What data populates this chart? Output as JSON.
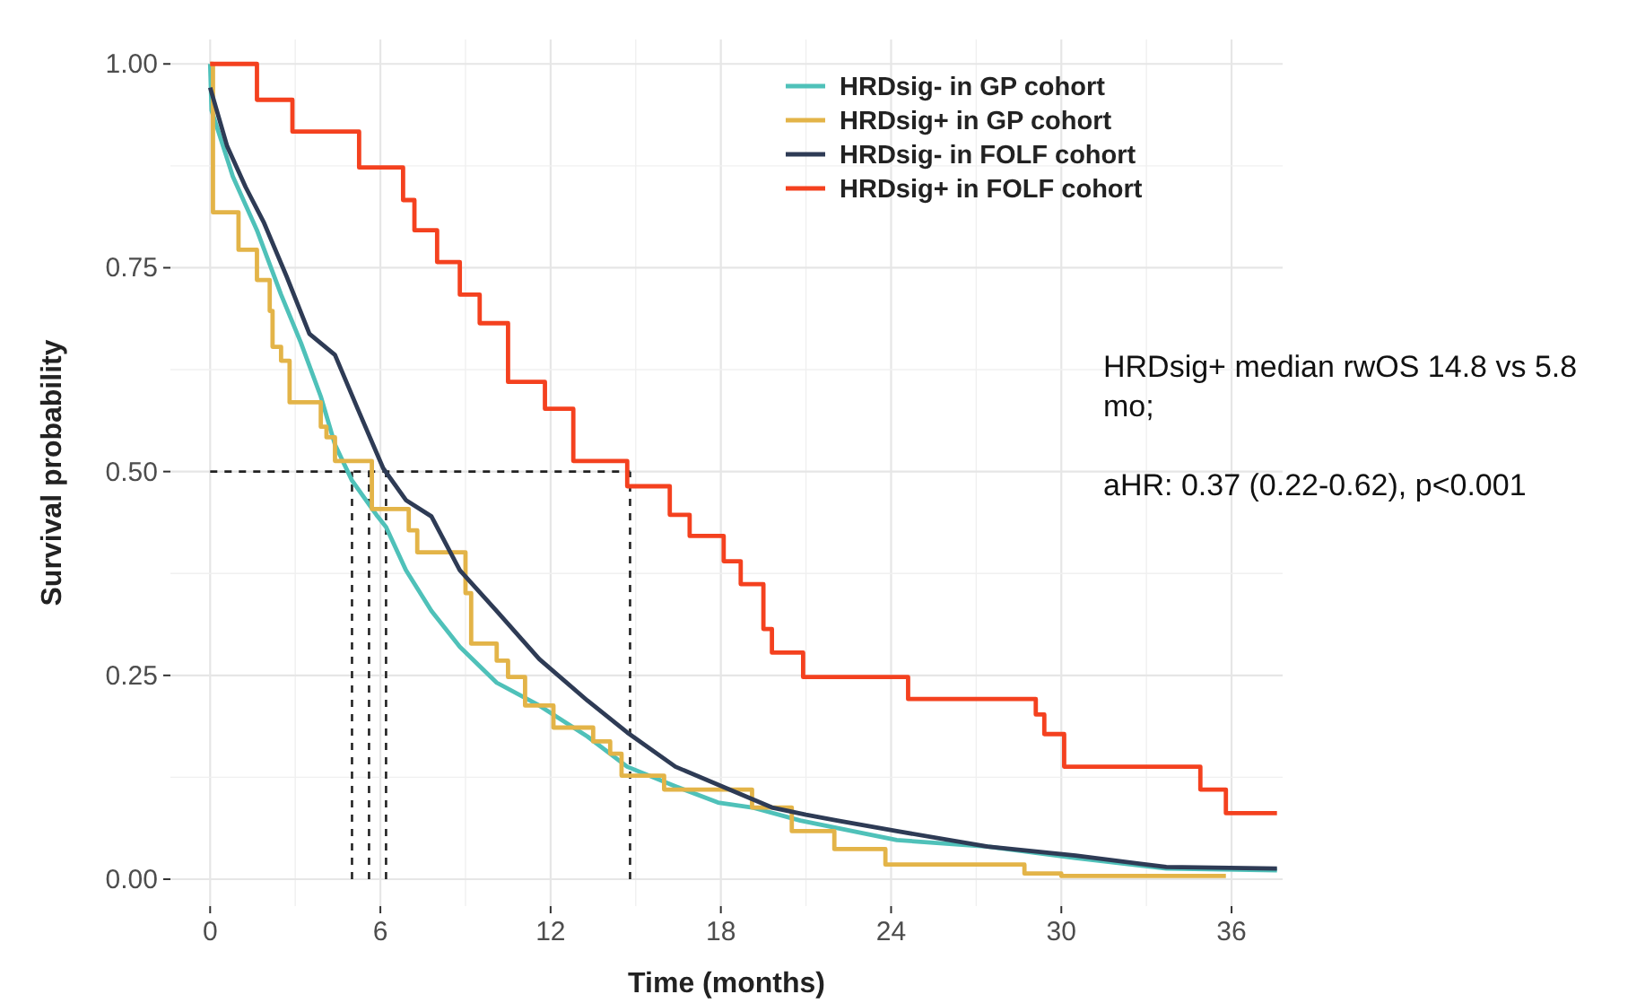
{
  "chart_data": {
    "type": "step",
    "xlabel": "Time (months)",
    "ylabel": "Survival probability",
    "xlim": [
      -1.4,
      37.8
    ],
    "ylim": [
      -0.033,
      1.03
    ],
    "xticks": [
      0,
      6,
      12,
      18,
      24,
      30,
      36
    ],
    "yticks": [
      {
        "value": 0,
        "label": "0.00"
      },
      {
        "value": 0.25,
        "label": "0.25"
      },
      {
        "value": 0.5,
        "label": "0.50"
      },
      {
        "value": 0.75,
        "label": "0.75"
      },
      {
        "value": 1,
        "label": "1.00"
      }
    ],
    "grid": true,
    "legend": "top right",
    "series": [
      {
        "name": "HRDsig- in GP cohort",
        "color": "#4fc1b9",
        "type": "line",
        "x": [
          0,
          0.05,
          0.8,
          1.65,
          2.5,
          3.2,
          3.9,
          4.4,
          5.0,
          5.9,
          6.2,
          6.9,
          7.8,
          8.8,
          10.1,
          11.6,
          13.3,
          14.7,
          16.4,
          17.9,
          19.1,
          20.8,
          24.2,
          27.4,
          30.5,
          33.7,
          37.6
        ],
        "values": [
          1,
          0.943,
          0.862,
          0.796,
          0.717,
          0.658,
          0.592,
          0.533,
          0.489,
          0.445,
          0.432,
          0.379,
          0.329,
          0.285,
          0.241,
          0.213,
          0.175,
          0.138,
          0.114,
          0.094,
          0.088,
          0.072,
          0.048,
          0.04,
          0.026,
          0.013,
          0.011
        ]
      },
      {
        "name": "HRDsig+ in GP cohort",
        "color": "#e3b448",
        "x": [
          0,
          0.1,
          1.0,
          1.65,
          2.1,
          2.2,
          2.5,
          2.8,
          3.9,
          4.1,
          4.4,
          5.7,
          7.0,
          7.3,
          9.0,
          9.2,
          10.1,
          10.5,
          11.1,
          12.1,
          13.5,
          14.1,
          14.5,
          16.0,
          19.1,
          20.5,
          22.0,
          23.8,
          28.7,
          30.0,
          35.8
        ],
        "values": [
          1,
          0.818,
          0.772,
          0.735,
          0.697,
          0.653,
          0.636,
          0.585,
          0.555,
          0.542,
          0.513,
          0.454,
          0.428,
          0.401,
          0.351,
          0.289,
          0.268,
          0.248,
          0.213,
          0.186,
          0.169,
          0.154,
          0.127,
          0.11,
          0.088,
          0.059,
          0.037,
          0.018,
          0.007,
          0.004,
          0.004
        ]
      },
      {
        "name": "HRDsig- in FOLF cohort",
        "color": "#2e3b55",
        "type": "line",
        "x": [
          0,
          0.6,
          1.25,
          1.9,
          2.7,
          3.5,
          4.4,
          5.2,
          6.1,
          6.9,
          7.8,
          8.8,
          10.1,
          11.6,
          13.3,
          14.7,
          16.4,
          18.3,
          19.8,
          21.0,
          22.1,
          24.2,
          27.4,
          30.5,
          33.7,
          37.6
        ],
        "values": [
          0.971,
          0.899,
          0.849,
          0.805,
          0.739,
          0.669,
          0.643,
          0.577,
          0.504,
          0.465,
          0.445,
          0.379,
          0.329,
          0.27,
          0.219,
          0.18,
          0.138,
          0.11,
          0.088,
          0.079,
          0.072,
          0.059,
          0.04,
          0.029,
          0.015,
          0.013
        ]
      },
      {
        "name": "HRDsig+ in FOLF cohort",
        "color": "#f4411f",
        "x": [
          0,
          1.65,
          2.9,
          5.25,
          6.8,
          7.2,
          8.0,
          8.8,
          9.5,
          10.5,
          11.8,
          12.8,
          14.7,
          16.2,
          16.9,
          18.1,
          18.7,
          19.5,
          19.8,
          20.9,
          24.6,
          29.1,
          29.4,
          30.1,
          34.9,
          35.8,
          37.6
        ],
        "values": [
          1,
          0.956,
          0.917,
          0.873,
          0.833,
          0.796,
          0.757,
          0.717,
          0.682,
          0.61,
          0.577,
          0.513,
          0.482,
          0.447,
          0.421,
          0.39,
          0.362,
          0.307,
          0.278,
          0.248,
          0.221,
          0.202,
          0.178,
          0.138,
          0.11,
          0.081,
          0.081
        ]
      }
    ],
    "ref_lines": [
      {
        "axis": "y",
        "value": 0.5,
        "color": "#222222",
        "line_style": "dashed"
      },
      {
        "axis": "x",
        "value": 5.0,
        "color": "#222222",
        "line_style": "dashed"
      },
      {
        "axis": "x",
        "value": 5.6,
        "color": "#222222",
        "line_style": "dashed"
      },
      {
        "axis": "x",
        "value": 6.2,
        "color": "#222222",
        "line_style": "dashed"
      },
      {
        "axis": "x",
        "value": 14.8,
        "color": "#222222",
        "line_style": "dashed"
      }
    ],
    "annotations": [
      "HRDsig+ median rwOS 14.8 vs 5.8 mo;",
      "aHR: 0.37 (0.22-0.62), p<0.001"
    ]
  }
}
